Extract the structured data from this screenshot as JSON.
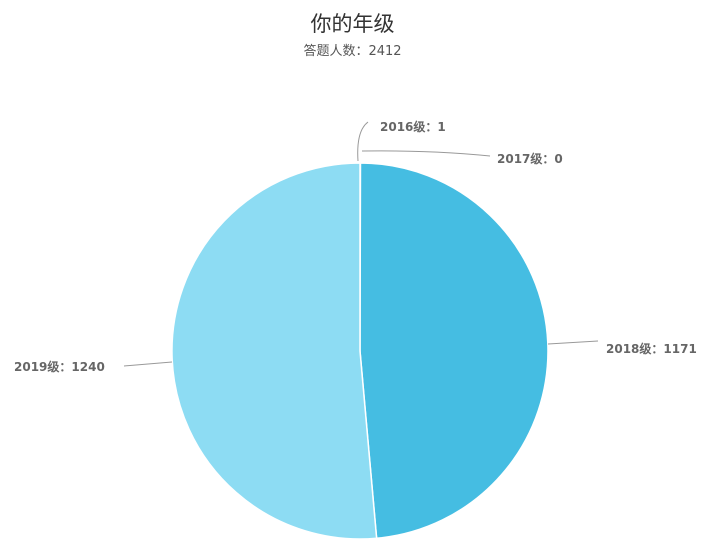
{
  "chart_data": {
    "type": "pie",
    "title": "你的年级",
    "subtitle": "答题人数：2412",
    "categories": [
      "2016级",
      "2017级",
      "2018级",
      "2019级"
    ],
    "values": [
      1,
      0,
      1171,
      1240
    ],
    "labels": [
      "2016级：1",
      "2017级：0",
      "2018级：1171",
      "2019级：1240"
    ],
    "colors": [
      "#c6e9f7",
      "#aee0f2",
      "#45bde2",
      "#8ddcf3"
    ],
    "legend": "none"
  }
}
